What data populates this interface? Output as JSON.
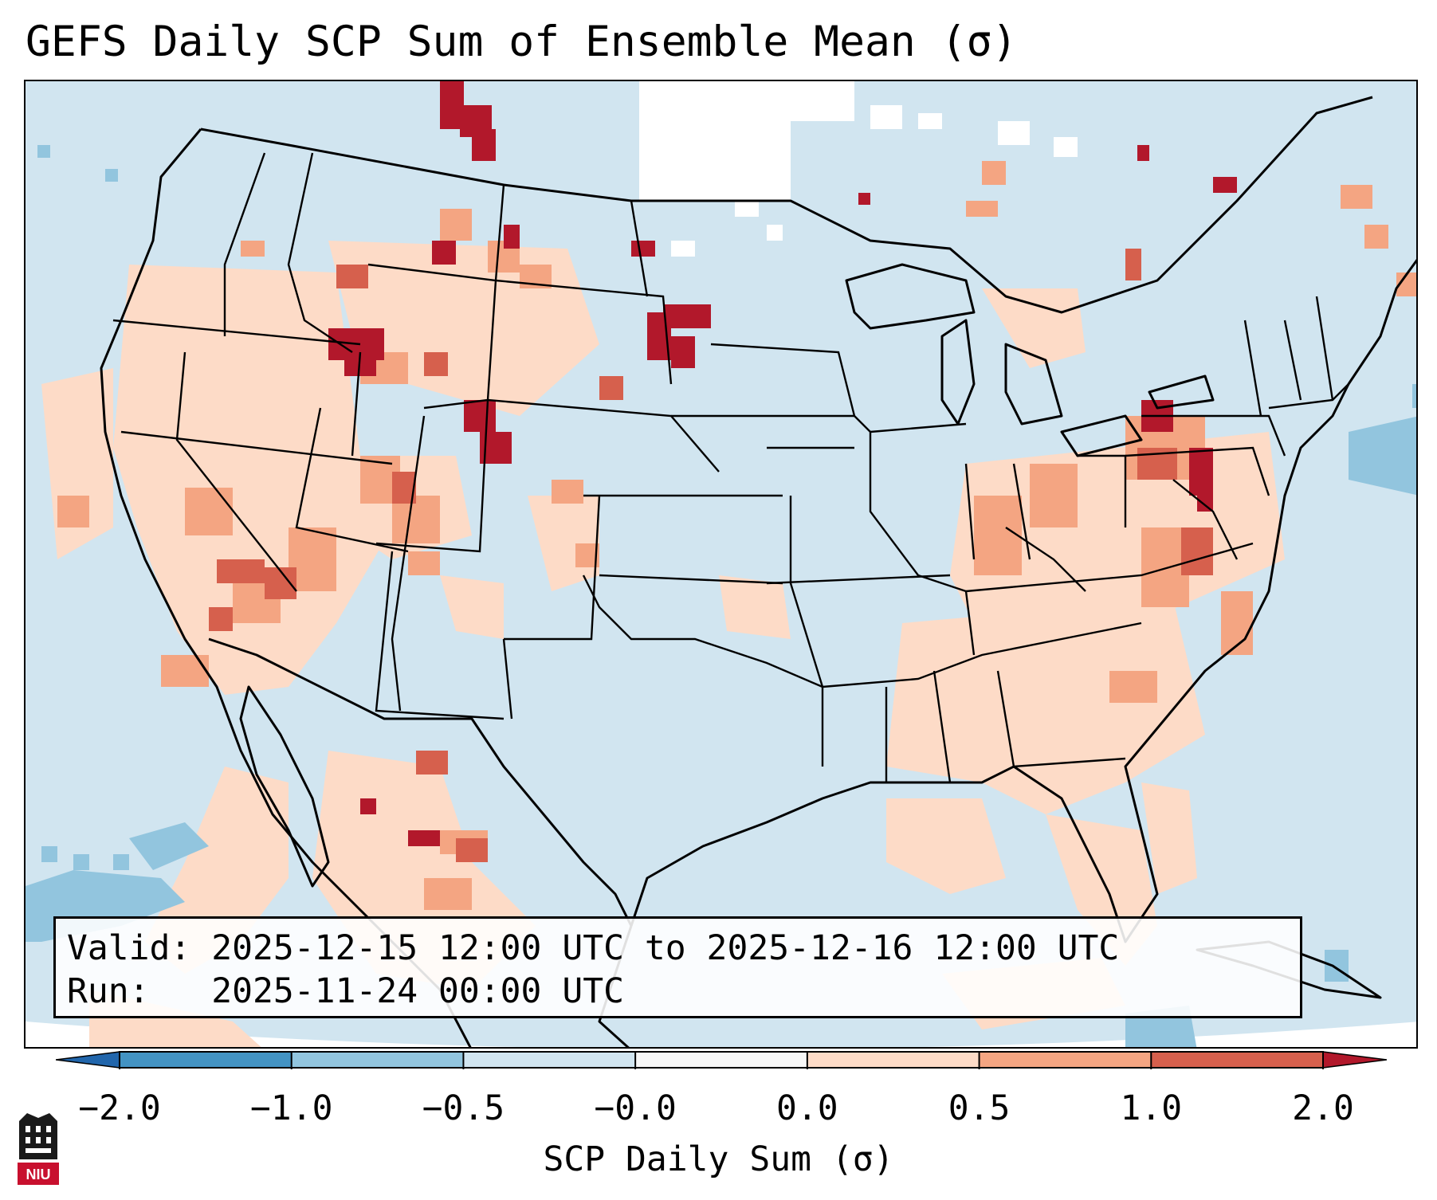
{
  "title": "GEFS Daily SCP Sum of Ensemble Mean (σ)",
  "info": {
    "valid_label": "Valid:",
    "valid_value": "2025-12-15 12:00 UTC to 2025-12-16 12:00 UTC",
    "run_label": "Run:",
    "run_value": "2025-11-24 00:00 UTC"
  },
  "colorbar": {
    "label": "SCP Daily Sum (σ)",
    "ticks": [
      "−2.0",
      "−1.0",
      "−0.5",
      "−0.0",
      "0.0",
      "0.5",
      "1.0",
      "2.0"
    ],
    "bins": [
      {
        "lower": -2.0,
        "upper": -1.0,
        "color": "#4393c3"
      },
      {
        "lower": -1.0,
        "upper": -0.5,
        "color": "#92c5de"
      },
      {
        "lower": -0.5,
        "upper": -0.0,
        "color": "#d1e5f0"
      },
      {
        "lower": -0.0,
        "upper": 0.0,
        "color": "#f7f7f7"
      },
      {
        "lower": 0.0,
        "upper": 0.5,
        "color": "#fddbc7"
      },
      {
        "lower": 0.5,
        "upper": 1.0,
        "color": "#f4a582"
      },
      {
        "lower": 1.0,
        "upper": 2.0,
        "color": "#d6604d"
      }
    ],
    "under_color": "#2166ac",
    "over_color": "#b2182b"
  },
  "logo_text": "NIU",
  "colors": {
    "ocean_background": "#d1e5f0",
    "weak_positive": "#fddbc7",
    "moderate_positive": "#f4a582",
    "strong_positive": "#d6604d",
    "extreme_positive": "#b2182b",
    "negative": "#92c5de",
    "neutral": "#ffffff",
    "logo_red": "#c8102e"
  }
}
